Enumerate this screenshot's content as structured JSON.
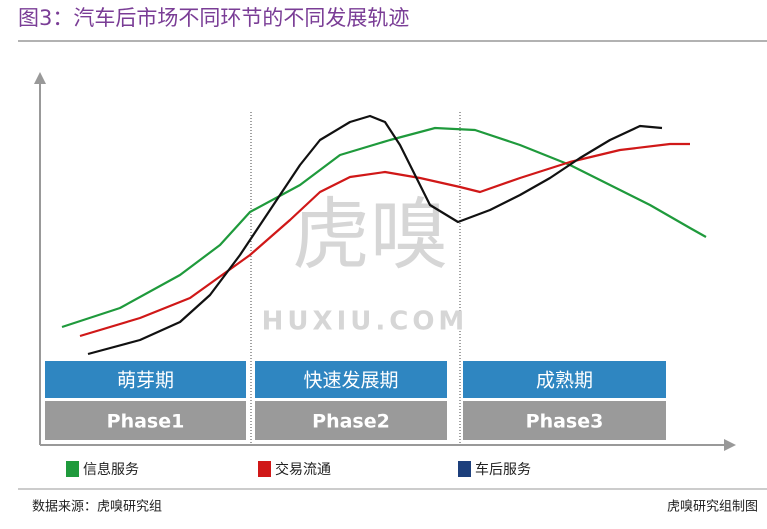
{
  "chart_data": {
    "type": "line",
    "title": "图3：汽车后市场不同环节的不同发展轨迹",
    "source": "数据来源：虎嗅研究组",
    "credit": "虎嗅研究组制图",
    "watermark": "虎嗅",
    "watermark_sub": "HUXIU.COM",
    "xlim": [
      0,
      700
    ],
    "ylim": [
      0,
      370
    ],
    "phases": [
      {
        "name": "萌芽期",
        "label": "Phase1"
      },
      {
        "name": "快速发展期",
        "label": "Phase2"
      },
      {
        "name": "成熟期",
        "label": "Phase3"
      }
    ],
    "series": [
      {
        "name": "信息服务",
        "color": "#1f9a3c",
        "legend_color": "#1f9a3c",
        "x": [
          22,
          80,
          140,
          180,
          210,
          260,
          300,
          350,
          395,
          435,
          480,
          530,
          570,
          610,
          650,
          666
        ],
        "values": [
          118,
          137,
          170,
          200,
          233,
          260,
          290,
          305,
          317,
          315,
          300,
          280,
          260,
          240,
          217,
          208
        ]
      },
      {
        "name": "交易流通",
        "color": "#d01818",
        "legend_color": "#d01818",
        "x": [
          40,
          100,
          150,
          210,
          250,
          280,
          310,
          345,
          380,
          420,
          440,
          480,
          530,
          580,
          630,
          650
        ],
        "values": [
          109,
          127,
          147,
          190,
          225,
          253,
          268,
          273,
          267,
          258,
          253,
          267,
          283,
          295,
          301,
          301
        ]
      },
      {
        "name": "车后服务",
        "color": "#111111",
        "legend_color": "#1d3f7c",
        "x": [
          48,
          100,
          140,
          170,
          200,
          230,
          260,
          280,
          310,
          330,
          345,
          360,
          375,
          390,
          418,
          450,
          480,
          510,
          540,
          570,
          600,
          622
        ],
        "values": [
          91,
          105,
          123,
          150,
          190,
          235,
          280,
          305,
          323,
          329,
          323,
          300,
          270,
          240,
          223,
          235,
          250,
          267,
          287,
          305,
          319,
          317
        ]
      }
    ]
  }
}
